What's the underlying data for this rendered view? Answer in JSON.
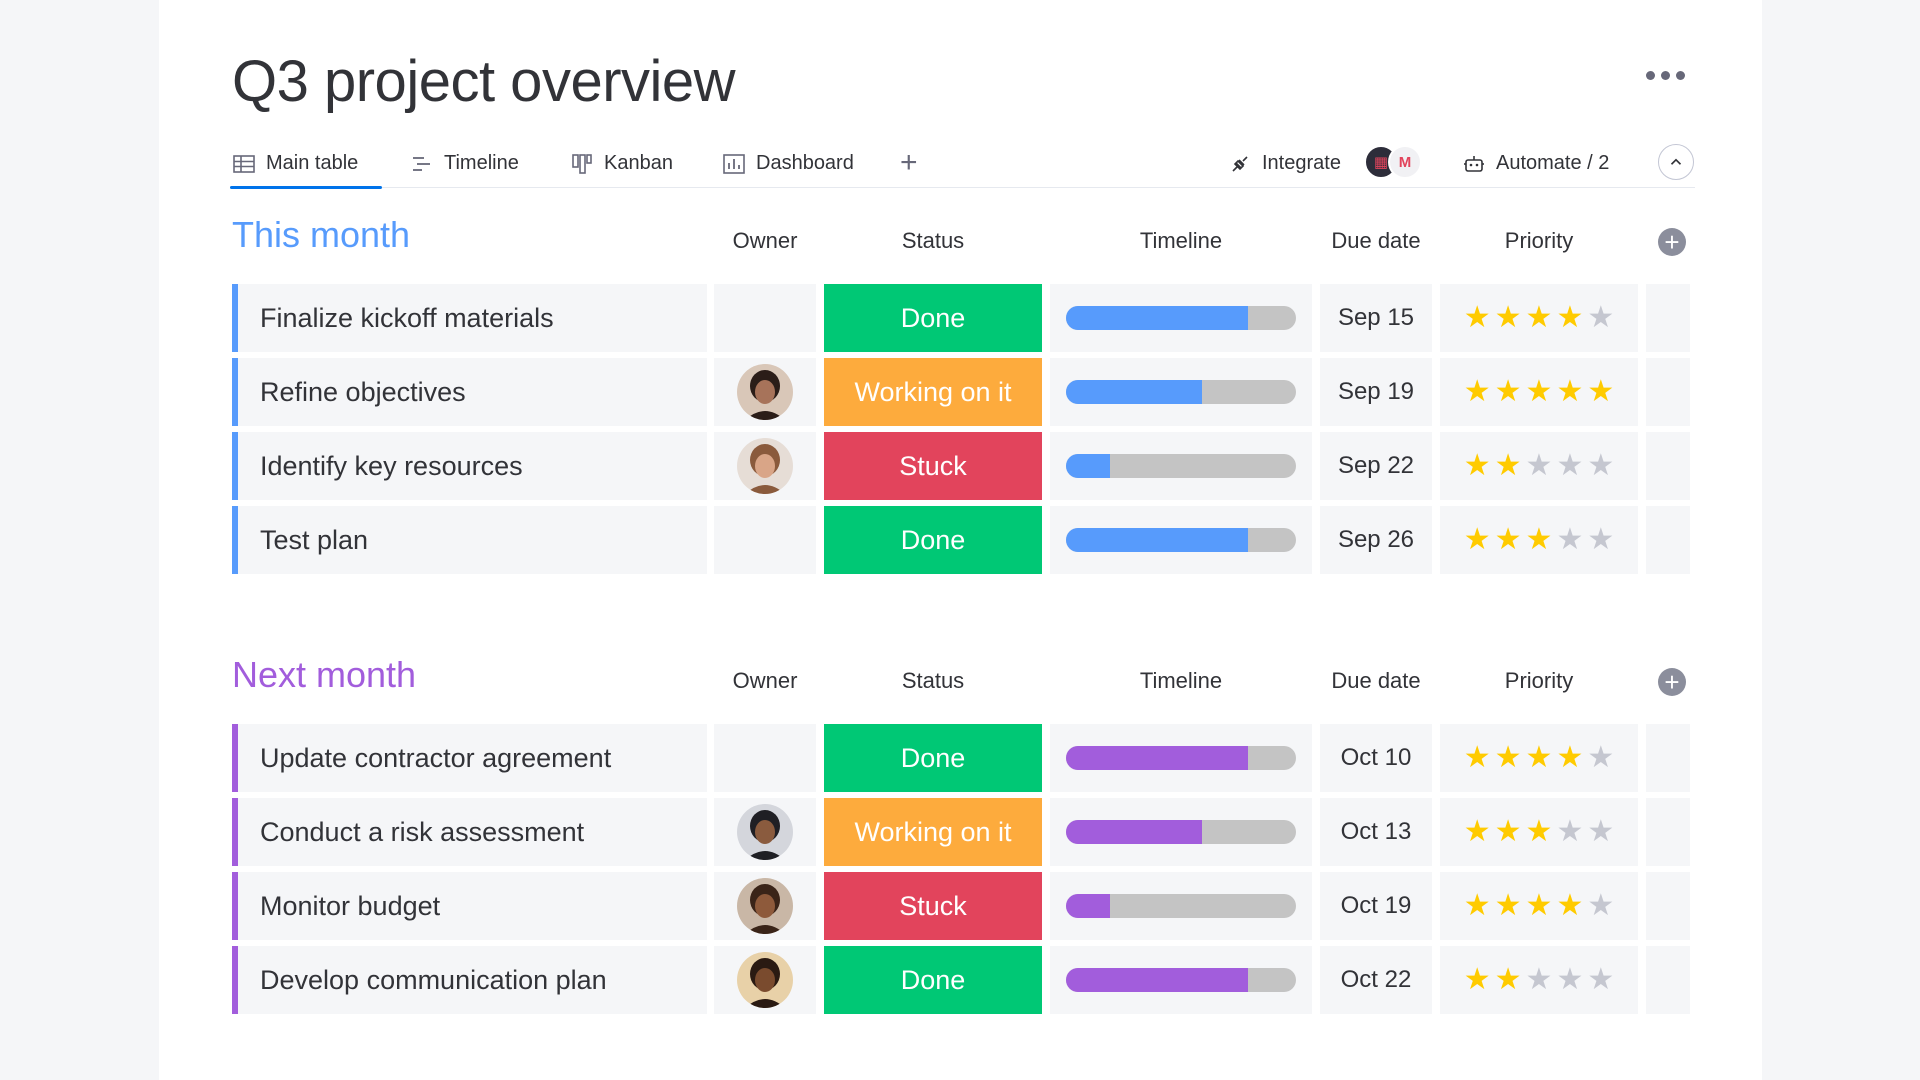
{
  "board": {
    "title": "Q3 project overview",
    "more_icon": "more-horizontal-icon"
  },
  "tabs": [
    {
      "label": "Main table",
      "icon": "table-icon",
      "active": true
    },
    {
      "label": "Timeline",
      "icon": "timeline-icon",
      "active": false
    },
    {
      "label": "Kanban",
      "icon": "kanban-icon",
      "active": false
    },
    {
      "label": "Dashboard",
      "icon": "dashboard-icon",
      "active": false
    }
  ],
  "toolbar": {
    "add_view": "+",
    "integrate_label": "Integrate",
    "integrate_icon": "integrate-plug-icon",
    "integration_apps": [
      "app-icon",
      "gmail-icon"
    ],
    "automate_label": "Automate / 2",
    "automate_icon": "robot-icon",
    "collapse_icon": "chevron-up-icon"
  },
  "columns": {
    "owner": "Owner",
    "status": "Status",
    "timeline": "Timeline",
    "due_date": "Due date",
    "priority": "Priority",
    "add_column_icon": "plus-circle-icon"
  },
  "colors": {
    "done": "#00c875",
    "working": "#fdab3d",
    "stuck": "#e2445c",
    "group1": "#579bfc",
    "group2": "#a25ddc",
    "star": "#ffcb00",
    "star_off": "#c5c7d0"
  },
  "groups": [
    {
      "title": "This month",
      "color": "#579bfc",
      "rows": [
        {
          "name": "Finalize kickoff materials",
          "owner": null,
          "status": "Done",
          "status_color": "#00c875",
          "timeline_progress": 0.79,
          "due": "Sep 15",
          "priority": 4
        },
        {
          "name": "Refine objectives",
          "owner": "avatar-1",
          "status": "Working on it",
          "status_color": "#fdab3d",
          "timeline_progress": 0.59,
          "due": "Sep 19",
          "priority": 5
        },
        {
          "name": "Identify key resources",
          "owner": "avatar-2",
          "status": "Stuck",
          "status_color": "#e2445c",
          "timeline_progress": 0.19,
          "due": "Sep 22",
          "priority": 2
        },
        {
          "name": "Test plan",
          "owner": null,
          "status": "Done",
          "status_color": "#00c875",
          "timeline_progress": 0.79,
          "due": "Sep 26",
          "priority": 3
        }
      ]
    },
    {
      "title": "Next month",
      "color": "#a25ddc",
      "rows": [
        {
          "name": "Update contractor agreement",
          "owner": null,
          "status": "Done",
          "status_color": "#00c875",
          "timeline_progress": 0.79,
          "due": "Oct 10",
          "priority": 4
        },
        {
          "name": "Conduct a risk assessment",
          "owner": "avatar-3",
          "status": "Working on it",
          "status_color": "#fdab3d",
          "timeline_progress": 0.59,
          "due": "Oct 13",
          "priority": 3
        },
        {
          "name": "Monitor budget",
          "owner": "avatar-4",
          "status": "Stuck",
          "status_color": "#e2445c",
          "timeline_progress": 0.19,
          "due": "Oct 19",
          "priority": 4
        },
        {
          "name": "Develop communication plan",
          "owner": "avatar-5",
          "status": "Done",
          "status_color": "#00c875",
          "timeline_progress": 0.79,
          "due": "Oct 22",
          "priority": 2
        }
      ]
    }
  ]
}
